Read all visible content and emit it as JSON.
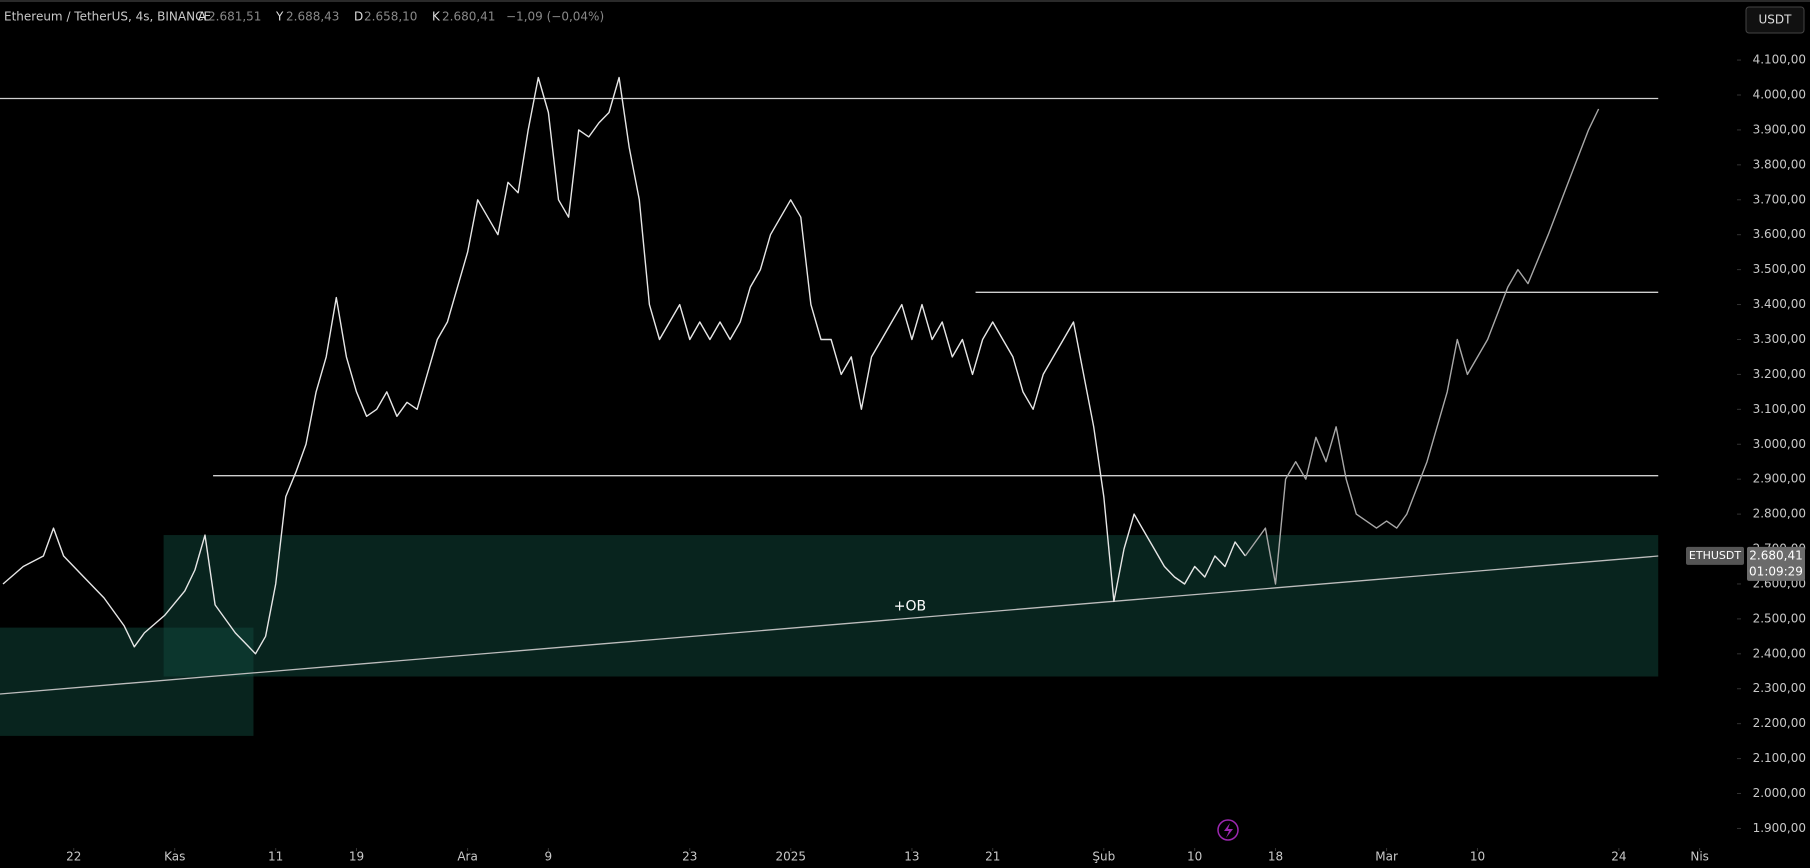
{
  "header": {
    "symbol": "Ethereum / TetherUS, 4s, BINANCE",
    "ohlc": [
      {
        "name": "A",
        "value": 2681.51,
        "label": "2.681,51"
      },
      {
        "name": "Y",
        "value": 2688.43,
        "label": "2.688,43"
      },
      {
        "name": "D",
        "value": 2658.1,
        "label": "2.658,10"
      },
      {
        "name": "K",
        "value": 2680.41,
        "label": "2.680,41"
      }
    ],
    "change": "−1,09 (−0,04%)",
    "currency": "USDT"
  },
  "chart_data": {
    "type": "line",
    "xlim": [
      14.7,
      186.7
    ],
    "ylim": [
      1844,
      4272
    ],
    "xticks": [
      {
        "value": 22,
        "label": "22"
      },
      {
        "value": 32,
        "label": "Kas"
      },
      {
        "value": 42,
        "label": "11"
      },
      {
        "value": 50,
        "label": "19"
      },
      {
        "value": 61,
        "label": "Ara"
      },
      {
        "value": 69,
        "label": "9"
      },
      {
        "value": 83,
        "label": "23"
      },
      {
        "value": 93,
        "label": "2025"
      },
      {
        "value": 105,
        "label": "13"
      },
      {
        "value": 113,
        "label": "21"
      },
      {
        "value": 124,
        "label": "Şub"
      },
      {
        "value": 133,
        "label": "10"
      },
      {
        "value": 141,
        "label": "18"
      },
      {
        "value": 152,
        "label": "Mar"
      },
      {
        "value": 161,
        "label": "10"
      },
      {
        "value": 175,
        "label": "24"
      },
      {
        "value": 183,
        "label": "Nis"
      }
    ],
    "yticks": [
      {
        "value": 1900,
        "label": "1.900,00"
      },
      {
        "value": 2000,
        "label": "2.000,00"
      },
      {
        "value": 2100,
        "label": "2.100,00"
      },
      {
        "value": 2200,
        "label": "2.200,00"
      },
      {
        "value": 2300,
        "label": "2.300,00"
      },
      {
        "value": 2400,
        "label": "2.400,00"
      },
      {
        "value": 2500,
        "label": "2.500,00"
      },
      {
        "value": 2600,
        "label": "2.600,00"
      },
      {
        "value": 2700,
        "label": "2.700,00"
      },
      {
        "value": 2800,
        "label": "2.800,00"
      },
      {
        "value": 2900,
        "label": "2.900,00"
      },
      {
        "value": 3000,
        "label": "3.000,00"
      },
      {
        "value": 3100,
        "label": "3.100,00"
      },
      {
        "value": 3200,
        "label": "3.200,00"
      },
      {
        "value": 3300,
        "label": "3.300,00"
      },
      {
        "value": 3400,
        "label": "3.400,00"
      },
      {
        "value": 3500,
        "label": "3.500,00"
      },
      {
        "value": 3600,
        "label": "3.600,00"
      },
      {
        "value": 3700,
        "label": "3.700,00"
      },
      {
        "value": 3800,
        "label": "3.800,00"
      },
      {
        "value": 3900,
        "label": "3.900,00"
      },
      {
        "value": 4000,
        "label": "4.000,00"
      },
      {
        "value": 4100,
        "label": "4.100,00"
      }
    ],
    "series": [
      {
        "color": "#e6e6e6",
        "x": [
          15,
          17,
          19,
          20,
          21,
          23,
          25,
          27,
          28,
          29,
          31,
          33,
          34,
          35,
          36,
          37,
          38,
          39,
          40,
          41,
          42,
          43,
          44,
          45,
          46,
          47,
          48,
          49,
          50,
          51,
          52,
          53,
          54,
          55,
          56,
          57,
          58,
          59,
          60,
          61,
          62,
          63,
          64,
          65,
          66,
          67,
          68,
          69,
          70,
          71,
          72,
          73,
          74,
          75,
          76,
          77,
          78,
          79,
          80,
          81,
          82,
          83,
          84,
          85,
          86,
          87,
          88,
          89,
          90,
          91,
          92,
          93,
          94,
          95,
          96,
          97,
          98,
          99,
          100,
          101,
          102,
          103,
          104,
          105,
          106,
          107,
          108,
          109,
          110,
          111,
          112,
          113,
          114,
          115,
          116,
          117,
          118,
          119,
          120,
          121,
          122,
          123,
          124,
          125,
          126,
          127,
          128,
          129,
          130,
          131,
          132,
          133,
          134,
          135,
          136,
          137,
          138
        ],
        "values": [
          2600,
          2650,
          2680,
          2760,
          2680,
          2620,
          2560,
          2480,
          2420,
          2460,
          2510,
          2580,
          2640,
          2740,
          2540,
          2500,
          2460,
          2430,
          2400,
          2450,
          2600,
          2850,
          2920,
          3000,
          3150,
          3250,
          3420,
          3250,
          3150,
          3080,
          3100,
          3150,
          3080,
          3120,
          3100,
          3200,
          3300,
          3350,
          3450,
          3550,
          3700,
          3650,
          3600,
          3750,
          3720,
          3900,
          4050,
          3950,
          3700,
          3650,
          3900,
          3880,
          3920,
          3950,
          4050,
          3850,
          3700,
          3400,
          3300,
          3350,
          3400,
          3300,
          3350,
          3300,
          3350,
          3300,
          3350,
          3450,
          3500,
          3600,
          3650,
          3700,
          3650,
          3400,
          3300,
          3300,
          3200,
          3250,
          3100,
          3250,
          3300,
          3350,
          3400,
          3300,
          3400,
          3300,
          3350,
          3250,
          3300,
          3200,
          3300,
          3350,
          3300,
          3250,
          3150,
          3100,
          3200,
          3250,
          3300,
          3350,
          3200,
          3050,
          2850,
          2550,
          2700,
          2800,
          2750,
          2700,
          2650,
          2620,
          2600,
          2650,
          2620,
          2680,
          2650,
          2720,
          2680.41
        ]
      },
      {
        "color": "#a8a8a8",
        "x": [
          138,
          140,
          141,
          142,
          143,
          144,
          145,
          146,
          147,
          148,
          149,
          150,
          151,
          152,
          153,
          154,
          156,
          158,
          159,
          160,
          162,
          164,
          165,
          166,
          168,
          170,
          172,
          173
        ],
        "values": [
          2680,
          2760,
          2600,
          2900,
          2950,
          2900,
          3020,
          2950,
          3050,
          2900,
          2800,
          2780,
          2760,
          2780,
          2760,
          2800,
          2950,
          3150,
          3300,
          3200,
          3300,
          3450,
          3500,
          3460,
          3600,
          3750,
          3900,
          3960
        ]
      }
    ],
    "levels": [
      {
        "value": 3990,
        "from": 14.7,
        "to": 178.9
      },
      {
        "value": 3435,
        "from": 111.3,
        "to": 178.9
      },
      {
        "value": 2910,
        "from": 35.8,
        "to": 178.9
      }
    ],
    "zones": [
      {
        "low": 2165,
        "high": 2475,
        "from": 14.7,
        "to": 39.8
      },
      {
        "low": 2335,
        "high": 2740,
        "from": 30.9,
        "to": 178.9
      }
    ],
    "trendline": {
      "x": [
        14.7,
        178.9
      ],
      "values": [
        2285,
        2680
      ]
    },
    "annotation": {
      "text": "+OB",
      "x": 104.8,
      "y": 2535
    },
    "price_tag": {
      "symbol": "ETHUSDT",
      "value": 2680.41,
      "label": "2.680,41",
      "countdown": "01:09:29"
    }
  }
}
